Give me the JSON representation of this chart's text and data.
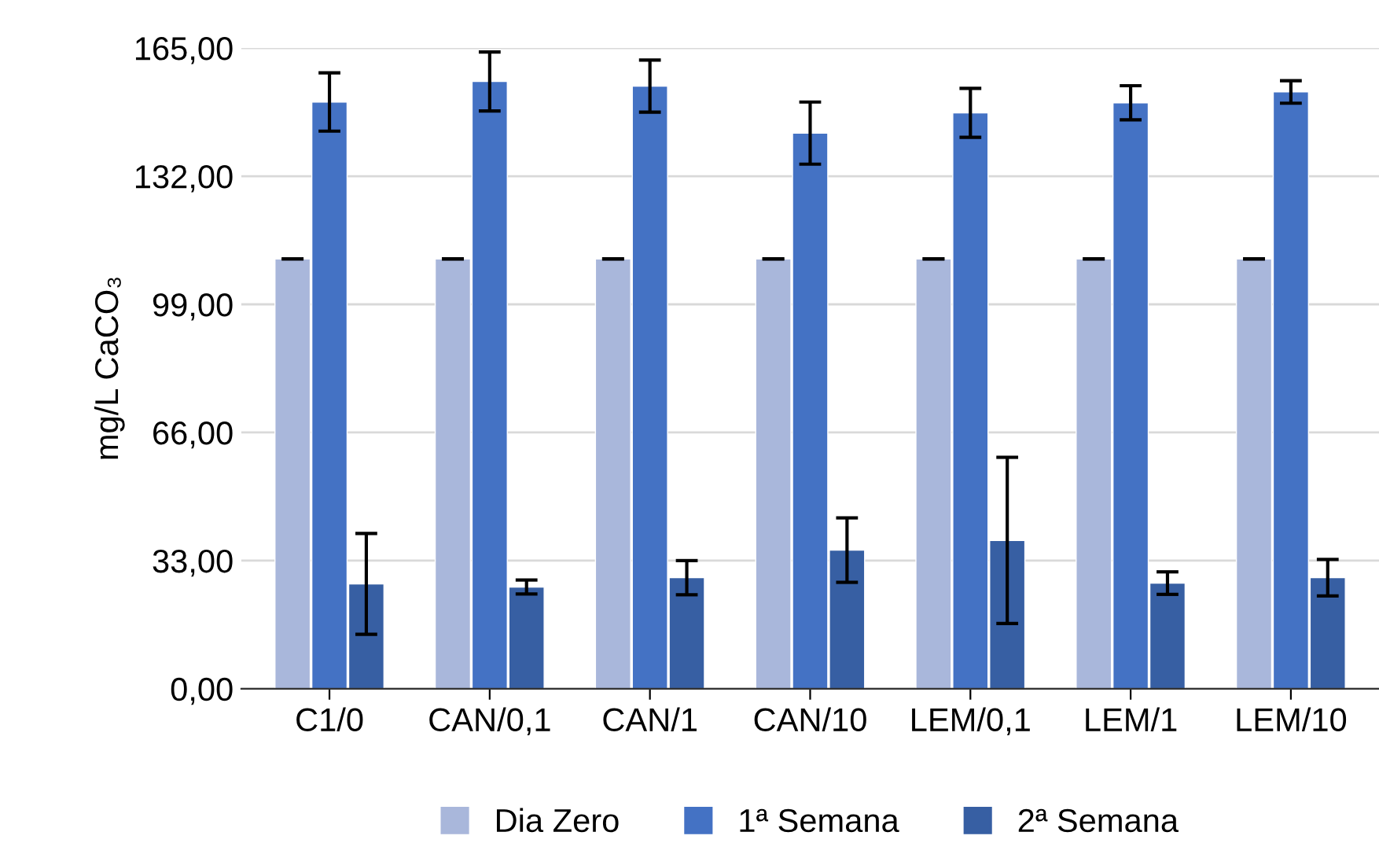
{
  "chart_data": {
    "type": "bar",
    "ylabel": "mg/L CaCO₃",
    "categories": [
      "C1/0",
      "CAN/0,1",
      "CAN/1",
      "CAN/10",
      "LEM/0,1",
      "LEM/1",
      "LEM/10"
    ],
    "series": [
      {
        "name": "Dia Zero",
        "color": "#a9b7db",
        "values": [
          110.7,
          110.7,
          110.7,
          110.7,
          110.7,
          110.7,
          110.7
        ],
        "errors": [
          0,
          0,
          0,
          0,
          0,
          0,
          0
        ]
      },
      {
        "name": "1ª Semana",
        "color": "#4472c4",
        "values": [
          151.1,
          156.4,
          155.2,
          143.1,
          148.3,
          150.9,
          153.7
        ],
        "errors": [
          7.5,
          7.6,
          6.7,
          8,
          6.3,
          4.4,
          2.9
        ]
      },
      {
        "name": "2ª Semana",
        "color": "#375fa3",
        "values": [
          27.0,
          26.2,
          28.6,
          35.7,
          38.2,
          27.2,
          28.6
        ],
        "errors": [
          13,
          1.8,
          4.4,
          8.3,
          21.4,
          2.9,
          4.7
        ]
      }
    ],
    "ylim": [
      0,
      165
    ],
    "yticks": [
      {
        "value": 0,
        "label": "0,00"
      },
      {
        "value": 33,
        "label": "33,00"
      },
      {
        "value": 66,
        "label": "66,00"
      },
      {
        "value": 99,
        "label": "99,00"
      },
      {
        "value": 132,
        "label": "132,00"
      },
      {
        "value": 165,
        "label": "165,00"
      }
    ],
    "grid": "y",
    "legend": "bottom"
  }
}
